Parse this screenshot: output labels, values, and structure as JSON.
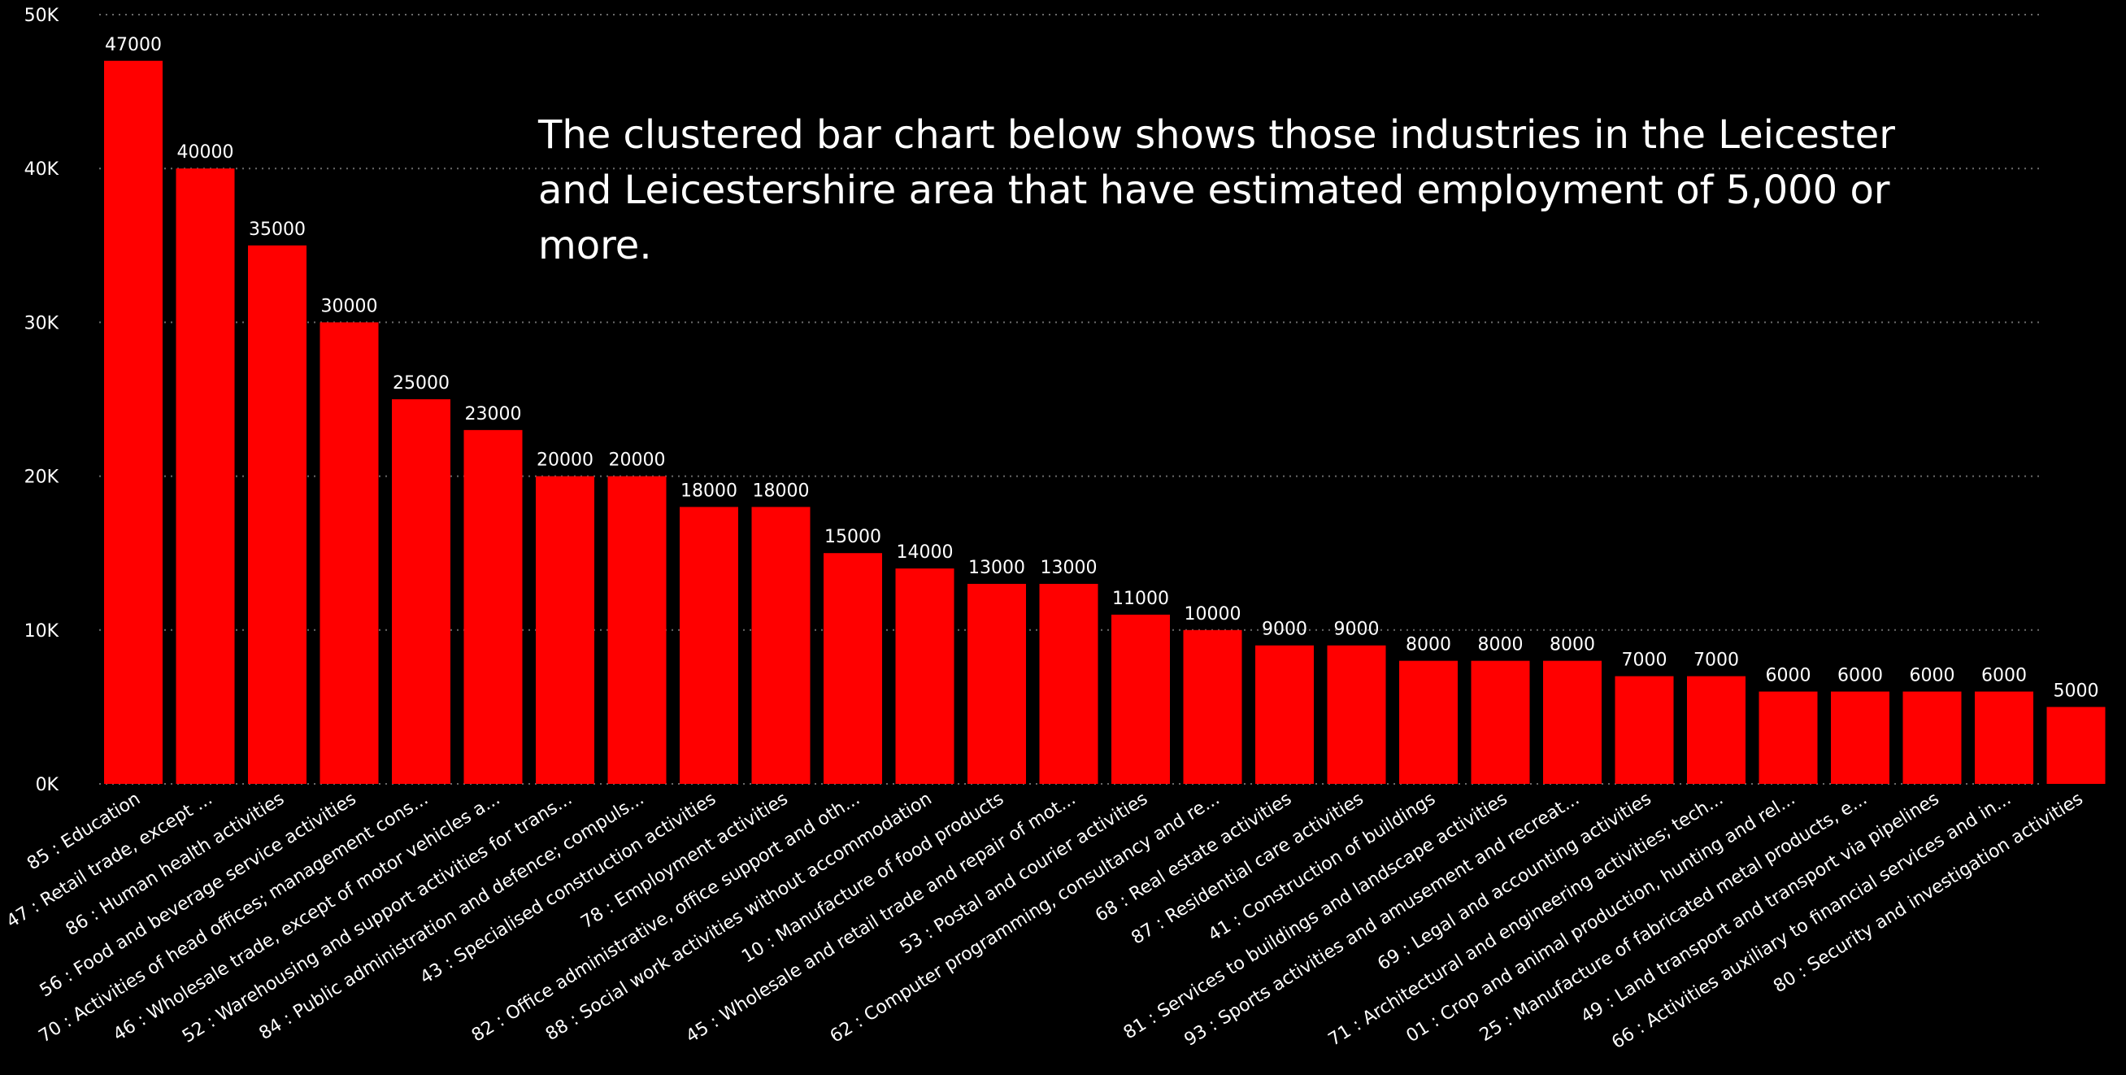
{
  "chart_data": {
    "type": "bar",
    "annotation": "The clustered bar chart below shows those industries in the Leicester and Leicestershire area that have estimated employment of 5,000 or more.",
    "bar_color": "#ff0000",
    "ylim": [
      0,
      50000
    ],
    "yticks": [
      {
        "value": 0,
        "label": "0K"
      },
      {
        "value": 10000,
        "label": "10K"
      },
      {
        "value": 20000,
        "label": "20K"
      },
      {
        "value": 30000,
        "label": "30K"
      },
      {
        "value": 40000,
        "label": "40K"
      },
      {
        "value": 50000,
        "label": "50K"
      }
    ],
    "grid": true,
    "categories": [
      "85 : Education",
      "47 : Retail trade, except ...",
      "86 : Human health activities",
      "56 : Food and beverage service activities",
      "70 : Activities of head offices; management cons...",
      "46 : Wholesale trade, except of motor vehicles a...",
      "52 : Warehousing and support activities for trans...",
      "84 : Public administration and defence; compuls...",
      "43 : Specialised construction activities",
      "78 : Employment activities",
      "82 : Office administrative, office support and oth...",
      "88 : Social work activities without accommodation",
      "10 : Manufacture of food products",
      "45 : Wholesale and retail trade and repair of mot...",
      "53 : Postal and courier activities",
      "62 : Computer programming, consultancy and re...",
      "68 : Real estate activities",
      "87 : Residential care activities",
      "41 : Construction of buildings",
      "81 : Services to buildings and landscape activities",
      "93 : Sports activities and amusement and recreat...",
      "69 : Legal and accounting activities",
      "71 : Architectural and engineering activities; tech...",
      "01 : Crop and animal production, hunting and rel...",
      "25 : Manufacture of fabricated metal products, e...",
      "49 : Land transport and transport via pipelines",
      "66 : Activities auxiliary to financial services and in...",
      "80 : Security and investigation activities"
    ],
    "values": [
      47000,
      40000,
      35000,
      30000,
      25000,
      23000,
      20000,
      20000,
      18000,
      18000,
      15000,
      14000,
      13000,
      13000,
      11000,
      10000,
      9000,
      9000,
      8000,
      8000,
      8000,
      7000,
      7000,
      6000,
      6000,
      6000,
      6000,
      5000
    ]
  }
}
